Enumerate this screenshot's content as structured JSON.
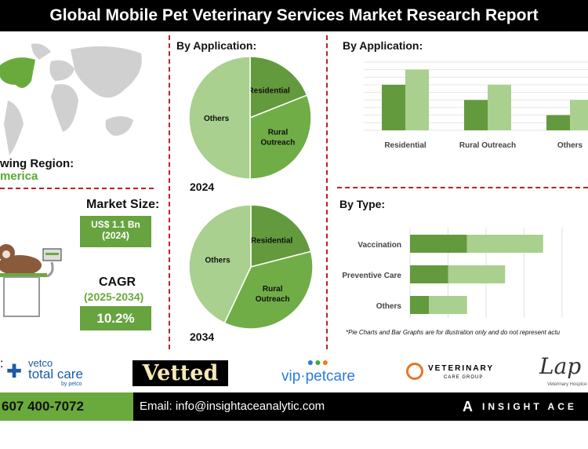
{
  "title": "Global Mobile Pet Veterinary Services Market Research Report",
  "region": {
    "label": "Fastest Growing Region:",
    "visible_label": "wing Region:",
    "value": "North America",
    "visible_value": "merica",
    "highlight_color": "#5aa832"
  },
  "market_size": {
    "label": "Market Size:",
    "value": "US$ 1.1 Bn",
    "year": "(2024)"
  },
  "cagr": {
    "label": "CAGR",
    "period": "(2025-2034)",
    "value": "10.2%"
  },
  "colors": {
    "dark_green": "#639a3d",
    "mid_green": "#70ad47",
    "light_green": "#a9d08e",
    "divider": "#b22222"
  },
  "chart_data": [
    {
      "type": "pie",
      "title": "By Application:",
      "year_label": "2024",
      "slices": [
        {
          "label": "Residential",
          "value": 19
        },
        {
          "label": "Rural Outreach",
          "value": 31
        },
        {
          "label": "Others",
          "value": 50
        }
      ]
    },
    {
      "type": "pie",
      "year_label": "2034",
      "slices": [
        {
          "label": "Residential",
          "value": 21
        },
        {
          "label": "Rural Outreach",
          "value": 36
        },
        {
          "label": "Others",
          "value": 43
        }
      ]
    },
    {
      "type": "bar",
      "title": "By Application:",
      "categories": [
        "Residential",
        "Rural Outreach",
        "Others"
      ],
      "series": [
        {
          "values": [
            6,
            4,
            2
          ]
        },
        {
          "values": [
            8,
            6,
            4
          ]
        }
      ],
      "grid": true
    },
    {
      "type": "bar",
      "orientation": "horizontal",
      "stacked": true,
      "title": "By Type:",
      "categories": [
        "Vaccination",
        "Preventive Care",
        "Others"
      ],
      "series": [
        {
          "values": [
            1.5,
            1,
            0.5
          ]
        },
        {
          "values": [
            2,
            1.5,
            1
          ]
        }
      ],
      "grid": true
    }
  ],
  "disclaimer": "*Pie Charts and Bar Graphs are for illustration only and do not represent actu",
  "logos": {
    "l1_label": ":",
    "vetco": [
      "vetco",
      "total care",
      "by petco"
    ],
    "vetted": "Vetted",
    "vip": "vip·petcare",
    "vcg": [
      "VETERINARY",
      "CARE GROUP"
    ],
    "lap": "Lap of",
    "lap_sub": "Veterinary Hospice"
  },
  "footer": {
    "phone": "607 400-7072",
    "email": "Email: info@insightaceanalytic.com",
    "brand": "INSIGHT ACE A"
  }
}
